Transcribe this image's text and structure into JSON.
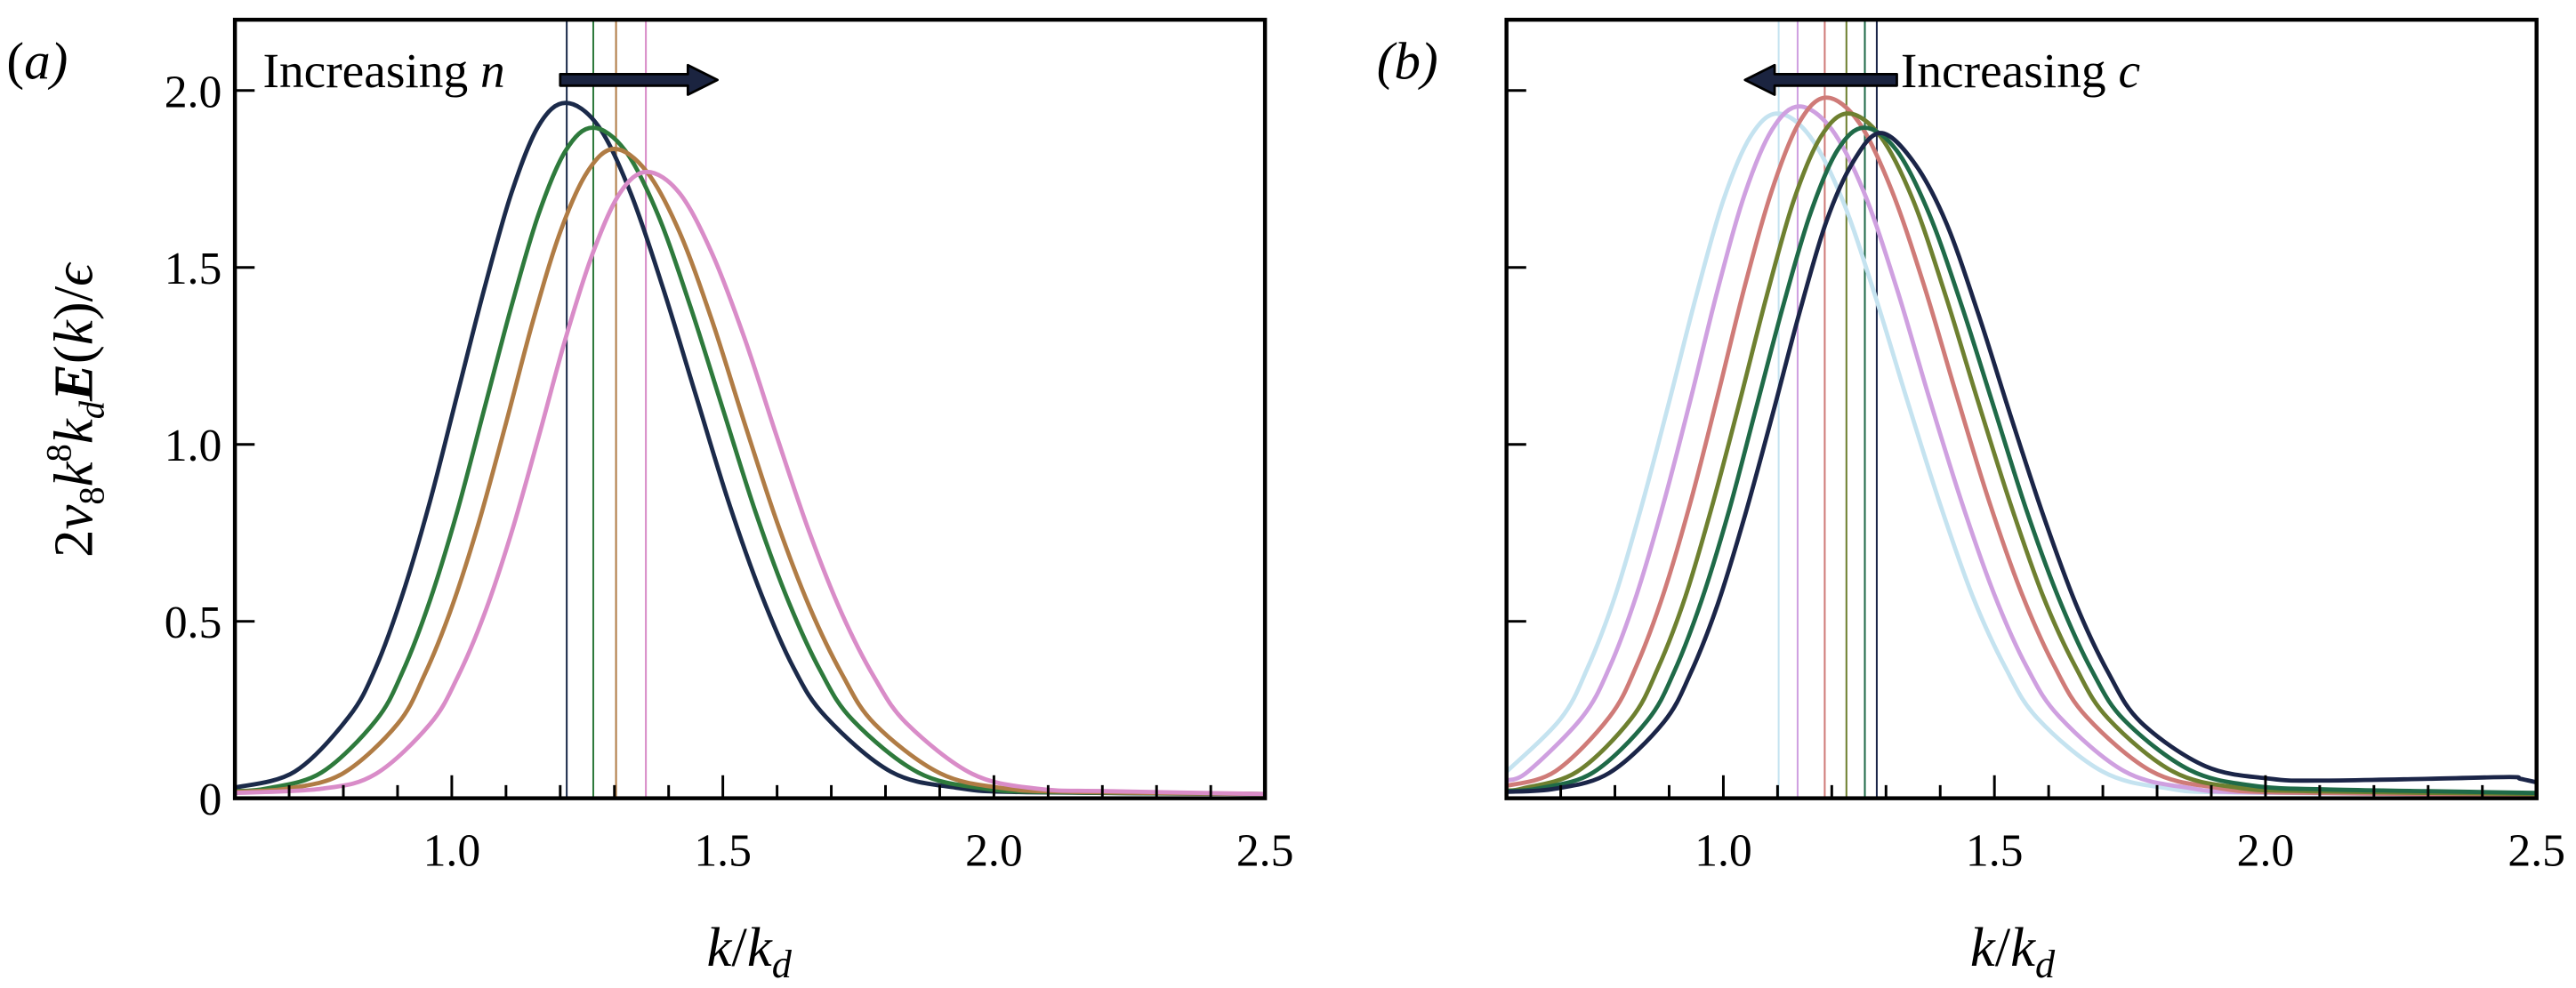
{
  "chart_data": [
    {
      "type": "line",
      "panel_label": "(a)",
      "xlabel": {
        "main": "k",
        "slash": "/",
        "sub_base": "k",
        "sub": "d"
      },
      "ylabel": {
        "p1": "2",
        "p2": "ν",
        "p2sub": "8",
        "p3": "k",
        "p3sup": "8",
        "p4": "k",
        "p4sub": "d",
        "p5": "E",
        "p6": "(",
        "p7": "k",
        "p8": ")/",
        "p9": "ϵ"
      },
      "xlim": [
        0.6,
        2.5
      ],
      "ylim": [
        0,
        2.2
      ],
      "xticks": [
        1.0,
        1.5,
        2.0,
        2.5
      ],
      "xtick_labels": [
        "1.0",
        "1.5",
        "2.0",
        "2.5"
      ],
      "yticks": [
        0,
        0.5,
        1.0,
        1.5,
        2.0
      ],
      "ytick_labels": [
        "0",
        "0.5",
        "1.0",
        "1.5",
        "2.0"
      ],
      "x_minor_step": 0.1,
      "grid": false,
      "annotation": {
        "text": "Increasing ",
        "var": "n",
        "arrow_direction": "right",
        "arrow_from": [
          1.2,
          2.03
        ],
        "arrow_to": [
          1.49,
          2.03
        ],
        "arrow_color": "#1b2440"
      },
      "series": [
        {
          "color": "#1b2a4a",
          "peak_x": 1.212,
          "points": [
            [
              0.6,
              0.03
            ],
            [
              0.71,
              0.075
            ],
            [
              0.81,
              0.23
            ],
            [
              0.86,
              0.37
            ],
            [
              0.91,
              0.58
            ],
            [
              0.96,
              0.84
            ],
            [
              1.01,
              1.14
            ],
            [
              1.06,
              1.44
            ],
            [
              1.11,
              1.71
            ],
            [
              1.16,
              1.9
            ],
            [
              1.21,
              1.965
            ],
            [
              1.27,
              1.9
            ],
            [
              1.33,
              1.71
            ],
            [
              1.39,
              1.44
            ],
            [
              1.45,
              1.14
            ],
            [
              1.51,
              0.84
            ],
            [
              1.57,
              0.58
            ],
            [
              1.63,
              0.37
            ],
            [
              1.69,
              0.23
            ],
            [
              1.81,
              0.075
            ],
            [
              1.93,
              0.03
            ],
            [
              2.06,
              0.017
            ],
            [
              2.5,
              0.012
            ]
          ]
        },
        {
          "color": "#2e7a3c",
          "peak_x": 1.261,
          "points": [
            [
              0.6,
              0.02
            ],
            [
              0.66,
              0.028
            ],
            [
              0.76,
              0.073
            ],
            [
              0.86,
              0.22
            ],
            [
              0.91,
              0.36
            ],
            [
              0.96,
              0.56
            ],
            [
              1.01,
              0.81
            ],
            [
              1.06,
              1.1
            ],
            [
              1.11,
              1.39
            ],
            [
              1.16,
              1.65
            ],
            [
              1.21,
              1.83
            ],
            [
              1.26,
              1.895
            ],
            [
              1.32,
              1.83
            ],
            [
              1.38,
              1.65
            ],
            [
              1.44,
              1.39
            ],
            [
              1.5,
              1.1
            ],
            [
              1.56,
              0.81
            ],
            [
              1.62,
              0.56
            ],
            [
              1.68,
              0.36
            ],
            [
              1.74,
              0.22
            ],
            [
              1.86,
              0.073
            ],
            [
              1.98,
              0.028
            ],
            [
              2.11,
              0.017
            ],
            [
              2.5,
              0.012
            ]
          ]
        },
        {
          "color": "#b07c45",
          "peak_x": 1.303,
          "points": [
            [
              0.6,
              0.018
            ],
            [
              0.7,
              0.028
            ],
            [
              0.8,
              0.071
            ],
            [
              0.9,
              0.21
            ],
            [
              0.95,
              0.35
            ],
            [
              1.0,
              0.54
            ],
            [
              1.05,
              0.78
            ],
            [
              1.1,
              1.06
            ],
            [
              1.15,
              1.35
            ],
            [
              1.2,
              1.6
            ],
            [
              1.25,
              1.77
            ],
            [
              1.3,
              1.835
            ],
            [
              1.36,
              1.77
            ],
            [
              1.42,
              1.6
            ],
            [
              1.48,
              1.35
            ],
            [
              1.54,
              1.06
            ],
            [
              1.6,
              0.78
            ],
            [
              1.66,
              0.54
            ],
            [
              1.72,
              0.35
            ],
            [
              1.78,
              0.21
            ],
            [
              1.9,
              0.071
            ],
            [
              2.02,
              0.028
            ],
            [
              2.15,
              0.018
            ],
            [
              2.5,
              0.012
            ]
          ]
        },
        {
          "color": "#d98cc8",
          "peak_x": 1.358,
          "points": [
            [
              0.6,
              0.015
            ],
            [
              0.76,
              0.027
            ],
            [
              0.86,
              0.069
            ],
            [
              0.96,
              0.21
            ],
            [
              1.01,
              0.34
            ],
            [
              1.06,
              0.52
            ],
            [
              1.11,
              0.75
            ],
            [
              1.16,
              1.02
            ],
            [
              1.21,
              1.3
            ],
            [
              1.26,
              1.54
            ],
            [
              1.31,
              1.71
            ],
            [
              1.36,
              1.77
            ],
            [
              1.42,
              1.71
            ],
            [
              1.48,
              1.54
            ],
            [
              1.54,
              1.3
            ],
            [
              1.6,
              1.02
            ],
            [
              1.66,
              0.75
            ],
            [
              1.72,
              0.52
            ],
            [
              1.78,
              0.34
            ],
            [
              1.84,
              0.21
            ],
            [
              1.96,
              0.069
            ],
            [
              2.08,
              0.027
            ],
            [
              2.21,
              0.02
            ],
            [
              2.5,
              0.012
            ]
          ]
        }
      ]
    },
    {
      "type": "line",
      "panel_label": "(b)",
      "xlabel": {
        "main": "k",
        "slash": "/",
        "sub_base": "k",
        "sub": "d"
      },
      "xlim": [
        0.6,
        2.5
      ],
      "ylim": [
        0,
        2.2
      ],
      "xticks": [
        1.0,
        1.5,
        2.0,
        2.5
      ],
      "xtick_labels": [
        "1.0",
        "1.5",
        "2.0",
        "2.5"
      ],
      "yticks": [
        0,
        0.5,
        1.0,
        1.5,
        2.0
      ],
      "ytick_labels": [],
      "x_minor_step": 0.1,
      "grid": false,
      "annotation": {
        "text": "Increasing ",
        "var": "c",
        "arrow_direction": "left",
        "arrow_from": [
          1.32,
          2.03
        ],
        "arrow_to": [
          1.04,
          2.03
        ],
        "arrow_color": "#1b2440"
      },
      "series": [
        {
          "color": "#c5e3f0",
          "peak_x": 1.102,
          "points": [
            [
              0.6,
              0.075
            ],
            [
              0.7,
              0.225
            ],
            [
              0.75,
              0.37
            ],
            [
              0.8,
              0.57
            ],
            [
              0.85,
              0.83
            ],
            [
              0.9,
              1.12
            ],
            [
              0.95,
              1.42
            ],
            [
              1.0,
              1.69
            ],
            [
              1.05,
              1.87
            ],
            [
              1.1,
              1.935
            ],
            [
              1.16,
              1.87
            ],
            [
              1.22,
              1.69
            ],
            [
              1.28,
              1.42
            ],
            [
              1.34,
              1.12
            ],
            [
              1.4,
              0.83
            ],
            [
              1.46,
              0.57
            ],
            [
              1.52,
              0.37
            ],
            [
              1.58,
              0.225
            ],
            [
              1.7,
              0.075
            ],
            [
              1.82,
              0.028
            ],
            [
              1.95,
              0.016
            ],
            [
              2.5,
              0.01
            ]
          ]
        },
        {
          "color": "#cfa0e0",
          "peak_x": 1.137,
          "points": [
            [
              0.6,
              0.05
            ],
            [
              0.64,
              0.076
            ],
            [
              0.74,
              0.23
            ],
            [
              0.79,
              0.37
            ],
            [
              0.84,
              0.575
            ],
            [
              0.89,
              0.835
            ],
            [
              0.94,
              1.13
            ],
            [
              0.99,
              1.44
            ],
            [
              1.04,
              1.71
            ],
            [
              1.09,
              1.89
            ],
            [
              1.14,
              1.955
            ],
            [
              1.2,
              1.89
            ],
            [
              1.26,
              1.71
            ],
            [
              1.32,
              1.44
            ],
            [
              1.38,
              1.13
            ],
            [
              1.44,
              0.835
            ],
            [
              1.5,
              0.575
            ],
            [
              1.56,
              0.37
            ],
            [
              1.62,
              0.23
            ],
            [
              1.74,
              0.076
            ],
            [
              1.86,
              0.029
            ],
            [
              1.99,
              0.016
            ],
            [
              2.5,
              0.01
            ]
          ]
        },
        {
          "color": "#cf7b78",
          "peak_x": 1.187,
          "points": [
            [
              0.6,
              0.035
            ],
            [
              0.69,
              0.076
            ],
            [
              0.79,
              0.23
            ],
            [
              0.84,
              0.375
            ],
            [
              0.89,
              0.58
            ],
            [
              0.94,
              0.84
            ],
            [
              0.99,
              1.14
            ],
            [
              1.04,
              1.45
            ],
            [
              1.09,
              1.72
            ],
            [
              1.14,
              1.91
            ],
            [
              1.19,
              1.98
            ],
            [
              1.25,
              1.91
            ],
            [
              1.31,
              1.72
            ],
            [
              1.37,
              1.45
            ],
            [
              1.43,
              1.14
            ],
            [
              1.49,
              0.84
            ],
            [
              1.55,
              0.58
            ],
            [
              1.61,
              0.375
            ],
            [
              1.67,
              0.23
            ],
            [
              1.79,
              0.076
            ],
            [
              1.91,
              0.03
            ],
            [
              2.04,
              0.016
            ],
            [
              2.5,
              0.01
            ]
          ]
        },
        {
          "color": "#6e8030",
          "peak_x": 1.227,
          "points": [
            [
              0.6,
              0.022
            ],
            [
              0.63,
              0.028
            ],
            [
              0.73,
              0.075
            ],
            [
              0.83,
              0.225
            ],
            [
              0.88,
              0.37
            ],
            [
              0.93,
              0.57
            ],
            [
              0.98,
              0.83
            ],
            [
              1.03,
              1.12
            ],
            [
              1.08,
              1.42
            ],
            [
              1.13,
              1.69
            ],
            [
              1.18,
              1.87
            ],
            [
              1.23,
              1.935
            ],
            [
              1.29,
              1.87
            ],
            [
              1.35,
              1.69
            ],
            [
              1.41,
              1.42
            ],
            [
              1.47,
              1.12
            ],
            [
              1.53,
              0.83
            ],
            [
              1.59,
              0.57
            ],
            [
              1.65,
              0.37
            ],
            [
              1.71,
              0.225
            ],
            [
              1.83,
              0.075
            ],
            [
              1.95,
              0.03
            ],
            [
              2.08,
              0.02
            ],
            [
              2.5,
              0.012
            ]
          ]
        },
        {
          "color": "#1f6a48",
          "peak_x": 1.261,
          "points": [
            [
              0.6,
              0.02
            ],
            [
              0.66,
              0.028
            ],
            [
              0.76,
              0.073
            ],
            [
              0.86,
              0.22
            ],
            [
              0.91,
              0.36
            ],
            [
              0.96,
              0.56
            ],
            [
              1.01,
              0.81
            ],
            [
              1.06,
              1.1
            ],
            [
              1.11,
              1.39
            ],
            [
              1.16,
              1.65
            ],
            [
              1.21,
              1.83
            ],
            [
              1.26,
              1.895
            ],
            [
              1.32,
              1.83
            ],
            [
              1.38,
              1.65
            ],
            [
              1.44,
              1.39
            ],
            [
              1.5,
              1.1
            ],
            [
              1.56,
              0.81
            ],
            [
              1.62,
              0.56
            ],
            [
              1.68,
              0.36
            ],
            [
              1.74,
              0.22
            ],
            [
              1.86,
              0.08
            ],
            [
              1.98,
              0.035
            ],
            [
              2.11,
              0.025
            ],
            [
              2.3,
              0.02
            ],
            [
              2.5,
              0.015
            ]
          ]
        },
        {
          "color": "#1b2548",
          "peak_x": 1.283,
          "points": [
            [
              0.6,
              0.018
            ],
            [
              0.69,
              0.027
            ],
            [
              0.79,
              0.072
            ],
            [
              0.89,
              0.215
            ],
            [
              0.94,
              0.355
            ],
            [
              0.99,
              0.55
            ],
            [
              1.04,
              0.8
            ],
            [
              1.09,
              1.08
            ],
            [
              1.14,
              1.37
            ],
            [
              1.19,
              1.63
            ],
            [
              1.24,
              1.8
            ],
            [
              1.29,
              1.88
            ],
            [
              1.35,
              1.8
            ],
            [
              1.41,
              1.63
            ],
            [
              1.47,
              1.37
            ],
            [
              1.53,
              1.08
            ],
            [
              1.59,
              0.8
            ],
            [
              1.65,
              0.55
            ],
            [
              1.71,
              0.355
            ],
            [
              1.77,
              0.215
            ],
            [
              1.89,
              0.09
            ],
            [
              2.01,
              0.055
            ],
            [
              2.1,
              0.05
            ],
            [
              2.3,
              0.055
            ],
            [
              2.45,
              0.06
            ],
            [
              2.47,
              0.055
            ],
            [
              2.5,
              0.045
            ]
          ]
        }
      ]
    }
  ]
}
